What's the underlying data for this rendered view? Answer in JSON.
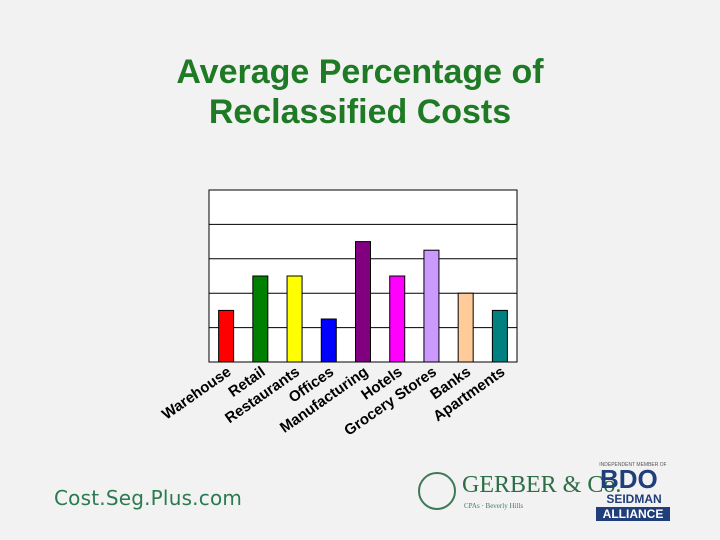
{
  "slide": {
    "title_line1": "Average Percentage of",
    "title_line2": "Reclassified Costs"
  },
  "footer": {
    "brand": "Cost.Seg.Plus.com",
    "gerber_name": "GERBER & Co.",
    "gerber_sub": "CPAs · Beverly Hills",
    "bdo_tag": "INDEPENDENT MEMBER OF",
    "bdo_name": "BDO",
    "bdo_seidman": "SEIDMAN",
    "bdo_alliance": "ALLIANCE"
  },
  "chart_data": {
    "type": "bar",
    "categories": [
      "Warehouse",
      "Retail",
      "Restaurants",
      "Offices",
      "Manufacturing",
      "Hotels",
      "Grocery Stores",
      "Banks",
      "Apartments"
    ],
    "values": [
      15,
      25,
      25,
      12.5,
      35,
      25,
      32.5,
      20,
      15
    ],
    "colors": [
      "#ff0000",
      "#008000",
      "#ffff00",
      "#0000ff",
      "#800080",
      "#ff00ff",
      "#cc99ff",
      "#ffcc99",
      "#008080"
    ],
    "ylim": [
      0,
      50
    ],
    "gridlines": [
      10,
      20,
      30,
      40,
      50
    ],
    "grid": true,
    "title": "",
    "xlabel": "",
    "ylabel": ""
  }
}
